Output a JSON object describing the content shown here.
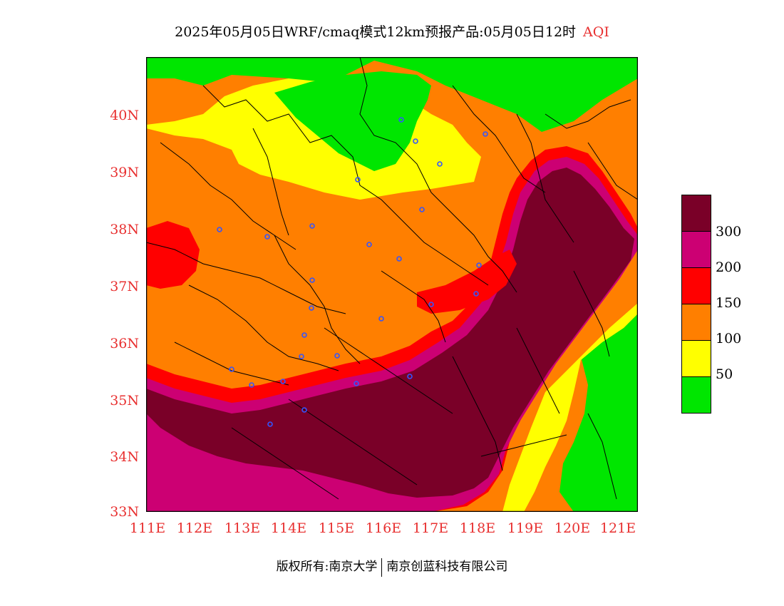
{
  "title": {
    "main": "2025年05月05日WRF/cmaq模式12km预报产品:05月05日12时",
    "variable": "AQI"
  },
  "map": {
    "lat_ticks": [
      "40N",
      "39N",
      "38N",
      "37N",
      "36N",
      "35N",
      "34N",
      "33N"
    ],
    "lon_ticks": [
      "111E",
      "112E",
      "113E",
      "114E",
      "115E",
      "116E",
      "117E",
      "118E",
      "119E",
      "120E",
      "121E"
    ],
    "colors": {
      "good": "#00e600",
      "moderate": "#ffff00",
      "sensitive": "#ff7f00",
      "unhealthy": "#ff0000",
      "very_unhealthy": "#cc0073",
      "hazardous": "#7a0028",
      "station": "#3355ff",
      "boundary": "#000000"
    }
  },
  "legend": {
    "labels": [
      "300",
      "200",
      "150",
      "100",
      "50"
    ]
  },
  "footer": {
    "copyright": "版权所有:南京大学",
    "company": "南京创蓝科技有限公司"
  }
}
